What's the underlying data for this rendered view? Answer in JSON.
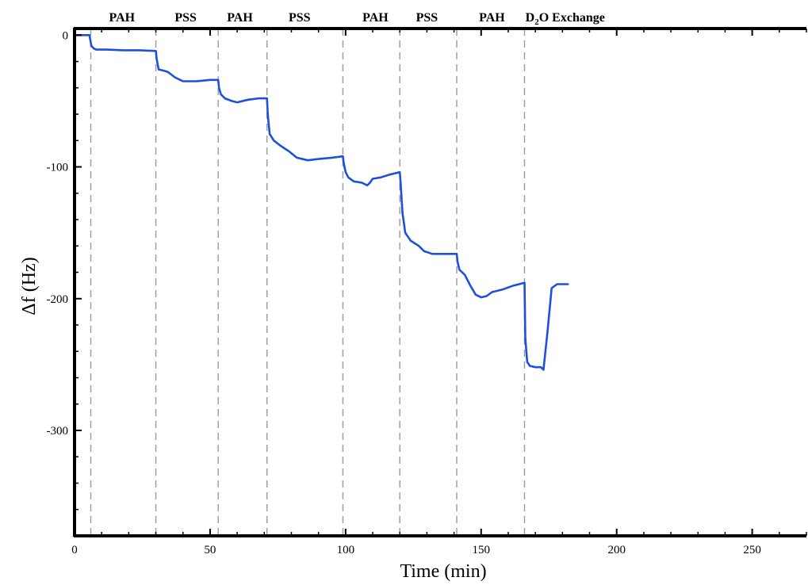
{
  "chart_data": {
    "type": "line",
    "xlabel": "Time (min)",
    "ylabel": "Δf (Hz)",
    "xlim": [
      0,
      270
    ],
    "ylim": [
      -380,
      5
    ],
    "x_ticks": [
      0,
      50,
      100,
      150,
      200,
      250
    ],
    "y_ticks": [
      0,
      -100,
      -200,
      -300
    ],
    "colors": {
      "series": "#1f4fe0",
      "divider": "#999999",
      "frame": "#000000"
    },
    "phase_boundaries": [
      6,
      30,
      53,
      71,
      99,
      120,
      141,
      166
    ],
    "phase_labels": [
      {
        "text": "PAH",
        "x": 17.5
      },
      {
        "text": "PSS",
        "x": 41
      },
      {
        "text": "PAH",
        "x": 61
      },
      {
        "text": "PSS",
        "x": 83
      },
      {
        "text": "PAH",
        "x": 111
      },
      {
        "text": "PSS",
        "x": 130
      },
      {
        "text": "PAH",
        "x": 154
      },
      {
        "text_main": "D",
        "text_sub": "2",
        "text_rest": "O Exchange",
        "x": 181
      }
    ],
    "series": [
      {
        "x": [
          0,
          3,
          5.5,
          6.2,
          7,
          8,
          12,
          18,
          24,
          30,
          30.3,
          31,
          33,
          34.5,
          37,
          40,
          45,
          50,
          53,
          53.3,
          54,
          55.5,
          58,
          60,
          64,
          68,
          71,
          71.3,
          72,
          73.5,
          76,
          79,
          82,
          86,
          90,
          95,
          99,
          99.3,
          100,
          101,
          103,
          106,
          108,
          109,
          110,
          113,
          116,
          120,
          120.3,
          121,
          122,
          124,
          127,
          129,
          132,
          137,
          141,
          141.3,
          142,
          144,
          146,
          148,
          150,
          152,
          154,
          158,
          162,
          166,
          166.3,
          167,
          168,
          170,
          172,
          173,
          174.5,
          176,
          178,
          182
        ],
        "values": [
          0,
          0,
          0,
          -8,
          -10,
          -11,
          -11,
          -11.5,
          -11.5,
          -12,
          -18,
          -26,
          -27,
          -28,
          -32,
          -35,
          -35,
          -34,
          -34,
          -40,
          -45,
          -48,
          -50,
          -51,
          -49,
          -48,
          -48,
          -60,
          -75,
          -80,
          -84,
          -88,
          -93,
          -95,
          -94,
          -93,
          -92,
          -97,
          -104,
          -108,
          -111,
          -112,
          -114,
          -112,
          -109,
          -108,
          -106,
          -104,
          -112,
          -135,
          -150,
          -156,
          -160,
          -164,
          -166,
          -166,
          -166,
          -172,
          -178,
          -182,
          -190,
          -197,
          -199,
          -198,
          -195,
          -193,
          -190,
          -188,
          -230,
          -248,
          -251,
          -252,
          -252,
          -254,
          -225,
          -192,
          -189,
          -189
        ]
      }
    ]
  }
}
